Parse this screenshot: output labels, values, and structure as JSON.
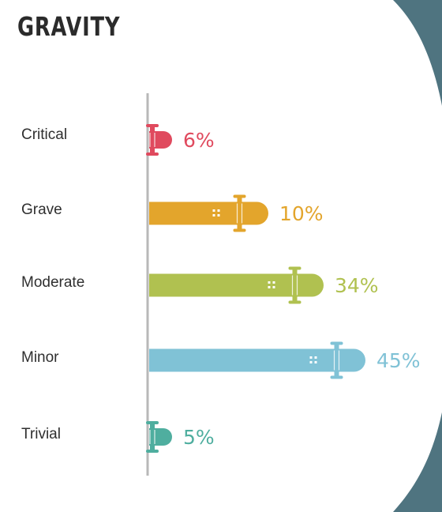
{
  "title": "GRAVITY",
  "colors": {
    "background_outer": "#4f7480",
    "card": "#ffffff",
    "axis": "#b8b8b8",
    "critical": "#e04a5e",
    "grave": "#e3a52c",
    "moderate": "#b0c150",
    "minor": "#80c2d6",
    "trivial": "#4fae9f"
  },
  "chart_data": {
    "type": "bar",
    "orientation": "horizontal",
    "title": "GRAVITY",
    "categories": [
      "Critical",
      "Grave",
      "Moderate",
      "Minor",
      "Trivial"
    ],
    "values": [
      6,
      10,
      34,
      45,
      5
    ],
    "value_labels": [
      "6%",
      "10%",
      "34%",
      "45%",
      "5%"
    ],
    "unit": "%",
    "bar_style": "skateboard",
    "grid": false,
    "legend": "none"
  }
}
